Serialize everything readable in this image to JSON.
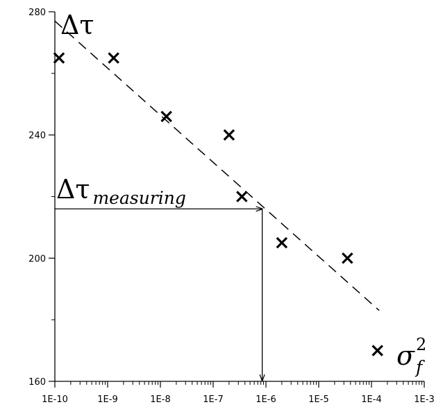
{
  "chart_data": {
    "type": "scatter",
    "x_scale": "log",
    "xlim": [
      1e-10,
      0.001
    ],
    "ylim": [
      160,
      280
    ],
    "x_ticks": [
      {
        "value": 1e-10,
        "label": "1E-10"
      },
      {
        "value": 1e-09,
        "label": "1E-9"
      },
      {
        "value": 1e-08,
        "label": "1E-8"
      },
      {
        "value": 1e-07,
        "label": "1E-7"
      },
      {
        "value": 1e-06,
        "label": "1E-6"
      },
      {
        "value": 1e-05,
        "label": "1E-5"
      },
      {
        "value": 0.0001,
        "label": "1E-4"
      },
      {
        "value": 0.001,
        "label": "1E-3"
      }
    ],
    "y_ticks": [
      {
        "value": 160,
        "label": "160"
      },
      {
        "value": 200,
        "label": "200"
      },
      {
        "value": 240,
        "label": "240"
      },
      {
        "value": 280,
        "label": "280"
      }
    ],
    "points": [
      {
        "x": 1.2e-10,
        "y": 265
      },
      {
        "x": 1.3e-09,
        "y": 265
      },
      {
        "x": 1.3e-08,
        "y": 246
      },
      {
        "x": 2e-07,
        "y": 240
      },
      {
        "x": 3.5e-07,
        "y": 220
      },
      {
        "x": 2e-06,
        "y": 205
      },
      {
        "x": 3.5e-05,
        "y": 200
      },
      {
        "x": 0.00013,
        "y": 170
      }
    ],
    "fit_line": {
      "style": "dashed",
      "start": {
        "x": 1e-10,
        "y": 277
      },
      "end": {
        "x": 0.00014,
        "y": 183
      }
    },
    "measurement": {
      "x": 8.5e-07,
      "y": 216
    },
    "y_label": {
      "symbol": "Δτ"
    },
    "x_label": {
      "base": "σ",
      "superscript": "2",
      "subscript": "f"
    },
    "annotation": {
      "symbol": "Δτ",
      "subscript": "measuring"
    },
    "grid": false
  }
}
